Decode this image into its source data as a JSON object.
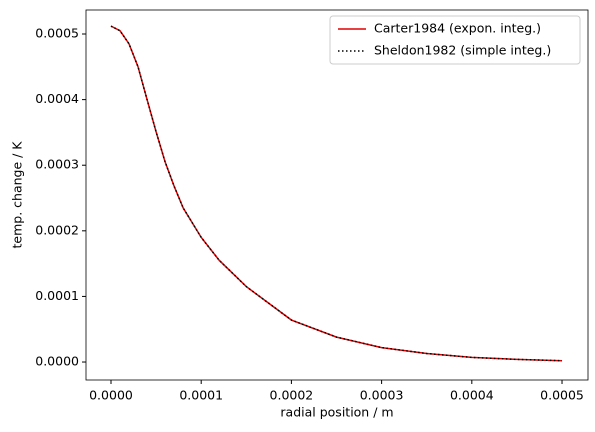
{
  "chart_data": {
    "type": "line",
    "xlabel": "radial position / m",
    "ylabel": "temp. change / K",
    "x": [
      0,
      1e-05,
      2e-05,
      3e-05,
      4e-05,
      5e-05,
      6e-05,
      7e-05,
      8e-05,
      0.0001,
      0.00012,
      0.00015,
      0.0002,
      0.00025,
      0.0003,
      0.00035,
      0.0004,
      0.00045,
      0.0005
    ],
    "series": [
      {
        "name": "Carter1984 (expon. integ.)",
        "color": "#e00000",
        "style": "solid",
        "values": [
          0.000512,
          0.000505,
          0.000485,
          0.00045,
          0.0004,
          0.000351,
          0.000305,
          0.000268,
          0.000235,
          0.00019,
          0.000155,
          0.000115,
          6.4e-05,
          3.8e-05,
          2.2e-05,
          1.3e-05,
          7e-06,
          4e-06,
          2e-06
        ]
      },
      {
        "name": "Sheldon1982 (simple integ.)",
        "color": "#000000",
        "style": "dotted",
        "values": [
          0.000512,
          0.000505,
          0.000485,
          0.00045,
          0.0004,
          0.000351,
          0.000305,
          0.000268,
          0.000235,
          0.00019,
          0.000155,
          0.000115,
          6.4e-05,
          3.8e-05,
          2.2e-05,
          1.3e-05,
          7e-06,
          4e-06,
          2e-06
        ]
      }
    ],
    "xlim": [
      -2.77e-05,
      0.0005288
    ],
    "ylim": [
      -2.74e-05,
      0.0005366
    ],
    "xticks": [
      {
        "value": 0,
        "label": "0.0000"
      },
      {
        "value": 0.0001,
        "label": "0.0001"
      },
      {
        "value": 0.0002,
        "label": "0.0002"
      },
      {
        "value": 0.0003,
        "label": "0.0003"
      },
      {
        "value": 0.0004,
        "label": "0.0004"
      },
      {
        "value": 0.0005,
        "label": "0.0005"
      }
    ],
    "yticks": [
      {
        "value": 0,
        "label": "0.0000"
      },
      {
        "value": 0.0001,
        "label": "0.0001"
      },
      {
        "value": 0.0002,
        "label": "0.0002"
      },
      {
        "value": 0.0003,
        "label": "0.0003"
      },
      {
        "value": 0.0004,
        "label": "0.0004"
      },
      {
        "value": 0.0005,
        "label": "0.0005"
      }
    ],
    "legend": "upper right",
    "grid": false
  }
}
